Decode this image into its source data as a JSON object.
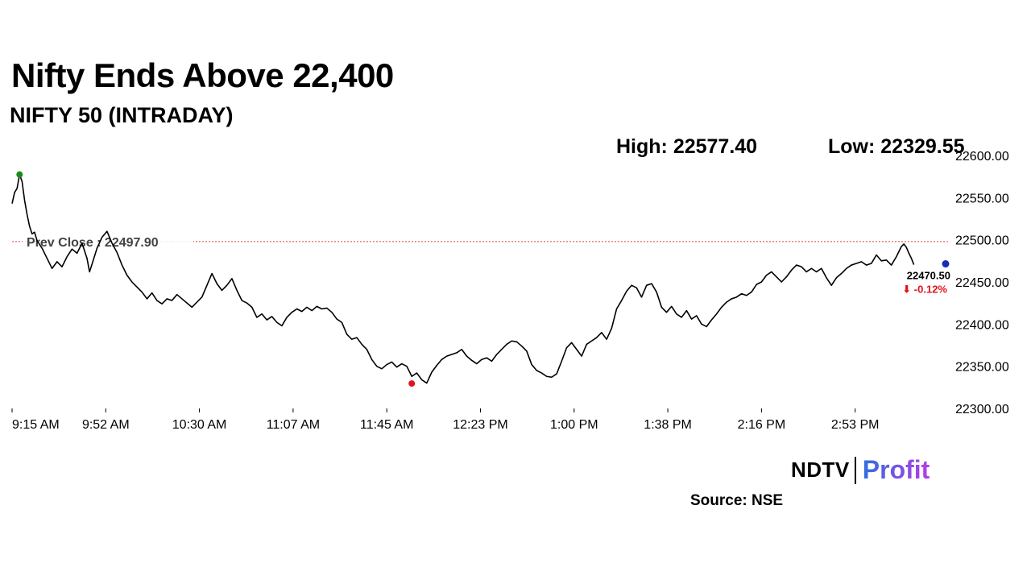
{
  "header": {
    "title": "Nifty Ends Above 22,400",
    "subtitle": "NIFTY 50 (INTRADAY)",
    "high_text": "High: 22577.40",
    "low_text": "Low: 22329.55"
  },
  "footer": {
    "logo_ndtv": "NDTV",
    "logo_profit": "Profit",
    "source": "Source: NSE"
  },
  "colors": {
    "line": "#000000",
    "prev_close_line": "#d64545",
    "high_marker": "#1a8a1a",
    "low_marker": "#e0141d",
    "last_marker": "#1a2bb8",
    "change_text": "#e0141d",
    "logo_profit_gradient": [
      "#2f6fe0",
      "#b53ee6"
    ]
  },
  "chart_data": {
    "type": "line",
    "title": "",
    "xlabel": "",
    "ylabel": "",
    "x_ticks": [
      "9:15 AM",
      "9:52 AM",
      "10:30 AM",
      "11:07 AM",
      "11:45 AM",
      "12:23 PM",
      "1:00 PM",
      "1:38 PM",
      "2:16 PM",
      "2:53 PM"
    ],
    "y_ticks": [
      "22300.00",
      "22350.00",
      "22400.00",
      "22450.00",
      "22500.00",
      "22550.00",
      "22600.00"
    ],
    "ylim": [
      22300,
      22600
    ],
    "x_range_minutes": [
      0,
      375
    ],
    "grid": false,
    "prev_close": {
      "value": 22497.9,
      "label": "Prev Close : 22497.90"
    },
    "last": {
      "value": 22470.5,
      "label": "22470.50",
      "change": "-0.12%",
      "change_arrow": "⬇"
    },
    "high_point": {
      "minute": 3,
      "value": 22577.4
    },
    "low_point": {
      "minute": 160,
      "value": 22329.55
    },
    "series": [
      {
        "points": [
          [
            0,
            22543
          ],
          [
            1,
            22556
          ],
          [
            2,
            22561
          ],
          [
            3,
            22577.4
          ],
          [
            4,
            22569
          ],
          [
            5,
            22547
          ],
          [
            6,
            22530
          ],
          [
            7,
            22516
          ],
          [
            8,
            22507
          ],
          [
            9,
            22509
          ],
          [
            10,
            22499
          ],
          [
            12,
            22490
          ],
          [
            14,
            22478
          ],
          [
            16,
            22466
          ],
          [
            18,
            22474
          ],
          [
            20,
            22468
          ],
          [
            22,
            22480
          ],
          [
            24,
            22489
          ],
          [
            26,
            22484
          ],
          [
            28,
            22496
          ],
          [
            30,
            22478
          ],
          [
            31,
            22462
          ],
          [
            32,
            22471
          ],
          [
            34,
            22490
          ],
          [
            36,
            22503
          ],
          [
            38,
            22510
          ],
          [
            40,
            22496
          ],
          [
            42,
            22485
          ],
          [
            44,
            22470
          ],
          [
            46,
            22458
          ],
          [
            48,
            22450
          ],
          [
            50,
            22444
          ],
          [
            52,
            22438
          ],
          [
            54,
            22430
          ],
          [
            56,
            22437
          ],
          [
            58,
            22428
          ],
          [
            60,
            22424
          ],
          [
            62,
            22430
          ],
          [
            64,
            22428
          ],
          [
            66,
            22435
          ],
          [
            68,
            22430
          ],
          [
            70,
            22425
          ],
          [
            72,
            22420
          ],
          [
            74,
            22426
          ],
          [
            76,
            22432
          ],
          [
            78,
            22446
          ],
          [
            80,
            22460
          ],
          [
            82,
            22448
          ],
          [
            84,
            22440
          ],
          [
            86,
            22446
          ],
          [
            88,
            22454
          ],
          [
            90,
            22440
          ],
          [
            92,
            22428
          ],
          [
            94,
            22425
          ],
          [
            96,
            22420
          ],
          [
            98,
            22408
          ],
          [
            100,
            22412
          ],
          [
            102,
            22405
          ],
          [
            104,
            22409
          ],
          [
            106,
            22402
          ],
          [
            108,
            22398
          ],
          [
            110,
            22408
          ],
          [
            112,
            22414
          ],
          [
            114,
            22418
          ],
          [
            116,
            22415
          ],
          [
            118,
            22420
          ],
          [
            120,
            22416
          ],
          [
            122,
            22421
          ],
          [
            124,
            22418
          ],
          [
            126,
            22419
          ],
          [
            128,
            22414
          ],
          [
            130,
            22406
          ],
          [
            132,
            22402
          ],
          [
            134,
            22388
          ],
          [
            136,
            22382
          ],
          [
            138,
            22384
          ],
          [
            140,
            22376
          ],
          [
            142,
            22370
          ],
          [
            144,
            22358
          ],
          [
            146,
            22350
          ],
          [
            148,
            22347
          ],
          [
            150,
            22352
          ],
          [
            152,
            22355
          ],
          [
            154,
            22349
          ],
          [
            156,
            22353
          ],
          [
            158,
            22350
          ],
          [
            160,
            22338
          ],
          [
            162,
            22342
          ],
          [
            164,
            22334
          ],
          [
            166,
            22330
          ],
          [
            168,
            22343
          ],
          [
            170,
            22351
          ],
          [
            172,
            22358
          ],
          [
            174,
            22362
          ],
          [
            176,
            22364
          ],
          [
            178,
            22366
          ],
          [
            180,
            22370
          ],
          [
            182,
            22362
          ],
          [
            184,
            22357
          ],
          [
            186,
            22353
          ],
          [
            188,
            22358
          ],
          [
            190,
            22360
          ],
          [
            192,
            22356
          ],
          [
            194,
            22364
          ],
          [
            196,
            22370
          ],
          [
            198,
            22376
          ],
          [
            200,
            22380
          ],
          [
            202,
            22379
          ],
          [
            204,
            22374
          ],
          [
            206,
            22368
          ],
          [
            208,
            22352
          ],
          [
            210,
            22345
          ],
          [
            212,
            22342
          ],
          [
            214,
            22338
          ],
          [
            216,
            22337
          ],
          [
            218,
            22341
          ],
          [
            220,
            22356
          ],
          [
            222,
            22372
          ],
          [
            224,
            22378
          ],
          [
            226,
            22370
          ],
          [
            228,
            22362
          ],
          [
            230,
            22376
          ],
          [
            232,
            22380
          ],
          [
            234,
            22384
          ],
          [
            236,
            22390
          ],
          [
            238,
            22382
          ],
          [
            240,
            22395
          ],
          [
            242,
            22418
          ],
          [
            244,
            22428
          ],
          [
            246,
            22439
          ],
          [
            248,
            22446
          ],
          [
            250,
            22443
          ],
          [
            252,
            22432
          ],
          [
            254,
            22446
          ],
          [
            256,
            22448
          ],
          [
            258,
            22438
          ],
          [
            260,
            22420
          ],
          [
            262,
            22414
          ],
          [
            264,
            22421
          ],
          [
            266,
            22412
          ],
          [
            268,
            22408
          ],
          [
            270,
            22416
          ],
          [
            272,
            22406
          ],
          [
            274,
            22410
          ],
          [
            276,
            22400
          ],
          [
            278,
            22397
          ],
          [
            280,
            22405
          ],
          [
            282,
            22412
          ],
          [
            284,
            22420
          ],
          [
            286,
            22426
          ],
          [
            288,
            22430
          ],
          [
            290,
            22432
          ],
          [
            292,
            22436
          ],
          [
            294,
            22434
          ],
          [
            296,
            22438
          ],
          [
            298,
            22447
          ],
          [
            300,
            22450
          ],
          [
            302,
            22458
          ],
          [
            304,
            22462
          ],
          [
            306,
            22456
          ],
          [
            308,
            22450
          ],
          [
            310,
            22456
          ],
          [
            312,
            22464
          ],
          [
            314,
            22470
          ],
          [
            316,
            22468
          ],
          [
            318,
            22462
          ],
          [
            320,
            22466
          ],
          [
            322,
            22462
          ],
          [
            324,
            22466
          ],
          [
            326,
            22455
          ],
          [
            328,
            22446
          ],
          [
            330,
            22455
          ],
          [
            332,
            22460
          ],
          [
            334,
            22466
          ],
          [
            336,
            22470
          ],
          [
            338,
            22472
          ],
          [
            340,
            22474
          ],
          [
            342,
            22470
          ],
          [
            344,
            22472
          ],
          [
            346,
            22482
          ],
          [
            348,
            22475
          ],
          [
            350,
            22476
          ],
          [
            352,
            22470
          ],
          [
            354,
            22480
          ],
          [
            356,
            22492
          ],
          [
            357,
            22495
          ],
          [
            358,
            22491
          ],
          [
            359,
            22484
          ],
          [
            360,
            22478
          ],
          [
            361,
            22470.5
          ]
        ]
      }
    ]
  }
}
